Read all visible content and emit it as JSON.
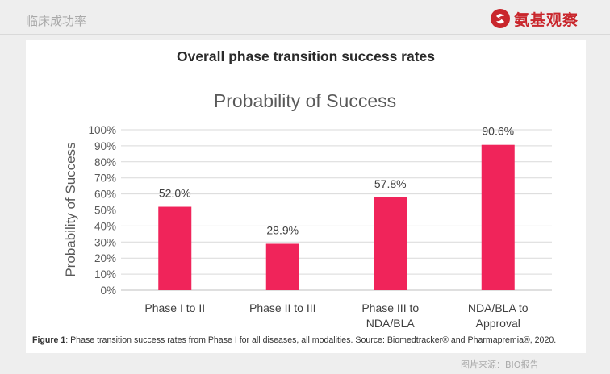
{
  "header": {
    "label": "临床成功率",
    "logo_text": "氨基观察",
    "logo_color": "#c9262c"
  },
  "card": {
    "heading": "Overall phase transition success rates",
    "caption_prefix": "Figure 1",
    "caption_text": ": Phase transition success rates from Phase I for all diseases, all modalities. Source: Biomedtracker® and Pharmapremia®, 2020."
  },
  "footer": {
    "credit": "图片来源：BIO报告"
  },
  "chart_data": {
    "type": "bar",
    "title": "Probability of Success",
    "ylabel": "Probability of Success",
    "xlabel": "",
    "categories": [
      "Phase I to II",
      "Phase II to III",
      "Phase III to NDA/BLA",
      "NDA/BLA to Approval"
    ],
    "category_lines": [
      [
        "Phase I to II"
      ],
      [
        "Phase II to III"
      ],
      [
        "Phase III to",
        "NDA/BLA"
      ],
      [
        "NDA/BLA to",
        "Approval"
      ]
    ],
    "values": [
      52.0,
      28.9,
      57.8,
      90.6
    ],
    "data_labels": [
      "52.0%",
      "28.9%",
      "57.8%",
      "90.6%"
    ],
    "ylim": [
      0,
      100
    ],
    "yticks": [
      0,
      10,
      20,
      30,
      40,
      50,
      60,
      70,
      80,
      90,
      100
    ],
    "ytick_labels": [
      "0%",
      "10%",
      "20%",
      "30%",
      "40%",
      "50%",
      "60%",
      "70%",
      "80%",
      "90%",
      "100%"
    ],
    "grid": true,
    "legend": "none",
    "bar_color": "#f0245a"
  }
}
